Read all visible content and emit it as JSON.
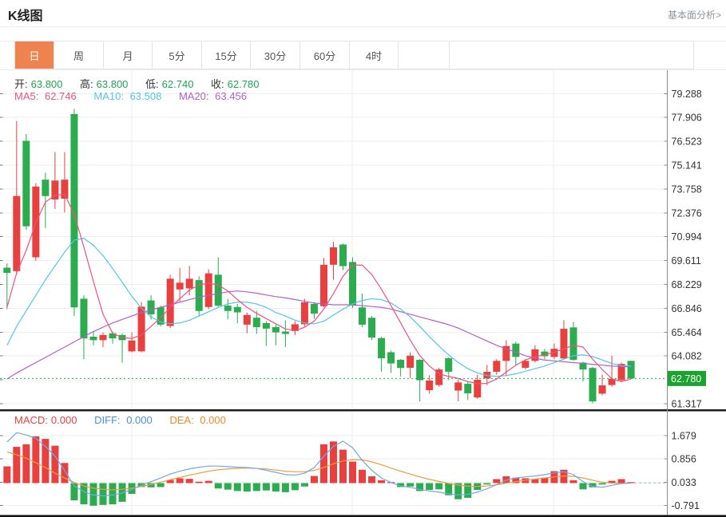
{
  "header": {
    "title": "K线图",
    "link": "基本面分析>"
  },
  "tabs": {
    "items": [
      "日",
      "周",
      "月",
      "5分",
      "15分",
      "30分",
      "60分",
      "4时"
    ],
    "selected": "日"
  },
  "legend": {
    "open_label": "开:",
    "open": "63.800",
    "high_label": "高:",
    "high": "63.800",
    "low_label": "低:",
    "low": "62.740",
    "close_label": "收:",
    "close": "62.780",
    "ma5_label": "MA5:",
    "ma5": "62.746",
    "ma10_label": "MA10:",
    "ma10": "63.508",
    "ma20_label": "MA20:",
    "ma20": "63.456"
  },
  "macd_legend": {
    "macd_label": "MACD:",
    "macd": "0.000",
    "diff_label": "DIFF:",
    "diff": "0.000",
    "dea_label": "DEA:",
    "dea": "0.000"
  },
  "colors": {
    "up": "#E83F3F",
    "down": "#2BAC4F",
    "value_green": "#1FA652",
    "ma5": "#F0527E",
    "ma10": "#53C6E8",
    "ma20": "#B25FD0",
    "diff_line": "#6FA8E8",
    "dea_line": "#F09A40",
    "diff_text": "#4A90D9",
    "dea_text": "#EF8B27",
    "macd_text": "#E64242",
    "tab_selected_bg": "#EF8350",
    "badge_bg": "#1AA32E",
    "current_price_line": "#2EAA4E",
    "axis": "#8A8A8A",
    "grid": "#EEEEEE",
    "tick_text": "#333333"
  },
  "chart_data": {
    "type": "candlestick",
    "panels": [
      "price",
      "macd"
    ],
    "legend_position": "top-left",
    "grid": true,
    "price_axis": {
      "labeled_ticks": [
        79.288,
        77.906,
        76.523,
        75.141,
        73.758,
        72.376,
        70.994,
        69.611,
        68.229,
        66.846,
        65.464,
        64.082,
        61.317
      ],
      "unlabeled_gridlines": [
        62.699
      ],
      "ylim": [
        61.0,
        79.9
      ],
      "current_price": 62.78,
      "current_price_label": "62.780"
    },
    "macd_axis": {
      "labeled_ticks": [
        1.679,
        0.856,
        0.033,
        -0.791
      ],
      "ylim": [
        -1.1,
        2.2
      ]
    },
    "candles_format": [
      "open",
      "high",
      "low",
      "close"
    ],
    "candles": [
      [
        69.2,
        69.45,
        66.8,
        68.9
      ],
      [
        69.0,
        77.7,
        68.8,
        73.35
      ],
      [
        76.55,
        76.95,
        71.4,
        71.6
      ],
      [
        69.8,
        74.1,
        69.6,
        73.9
      ],
      [
        74.3,
        74.7,
        71.5,
        73.35
      ],
      [
        73.15,
        75.9,
        72.6,
        74.25
      ],
      [
        73.2,
        75.9,
        72.4,
        74.3
      ],
      [
        78.1,
        78.4,
        66.4,
        66.9
      ],
      [
        67.4,
        67.6,
        63.9,
        65.1
      ],
      [
        65.2,
        65.5,
        64.7,
        65.0
      ],
      [
        65.0,
        65.45,
        64.6,
        65.3
      ],
      [
        65.4,
        65.5,
        64.8,
        65.1
      ],
      [
        65.3,
        65.4,
        63.7,
        65.0
      ],
      [
        64.35,
        65.45,
        64.3,
        64.98
      ],
      [
        64.35,
        67.2,
        64.3,
        66.94
      ],
      [
        67.3,
        67.6,
        66.2,
        66.5
      ],
      [
        66.9,
        67.0,
        65.8,
        65.9
      ],
      [
        65.82,
        68.8,
        65.7,
        68.56
      ],
      [
        67.94,
        69.2,
        67.2,
        68.33
      ],
      [
        68.0,
        69.3,
        67.6,
        68.56
      ],
      [
        68.48,
        68.7,
        66.4,
        66.69
      ],
      [
        66.92,
        69.1,
        66.8,
        68.87
      ],
      [
        68.79,
        69.8,
        66.9,
        67.0
      ],
      [
        67.0,
        67.4,
        66.2,
        66.69
      ],
      [
        66.92,
        67.1,
        65.98,
        66.61
      ],
      [
        65.9,
        66.6,
        65.4,
        66.46
      ],
      [
        66.3,
        66.7,
        65.36,
        65.75
      ],
      [
        65.99,
        66.1,
        64.66,
        65.67
      ],
      [
        65.76,
        65.9,
        64.7,
        65.45
      ],
      [
        65.5,
        66.15,
        64.6,
        65.36
      ],
      [
        65.53,
        66.1,
        65.3,
        65.92
      ],
      [
        65.92,
        67.4,
        65.8,
        67.19
      ],
      [
        67.1,
        67.2,
        66.23,
        66.54
      ],
      [
        66.97,
        69.76,
        66.9,
        69.37
      ],
      [
        69.37,
        70.7,
        68.5,
        70.38
      ],
      [
        70.54,
        70.6,
        69.05,
        69.29
      ],
      [
        69.53,
        69.8,
        66.86,
        67.0
      ],
      [
        66.9,
        67.7,
        65.75,
        65.9
      ],
      [
        66.3,
        66.4,
        65.0,
        65.15
      ],
      [
        65.12,
        65.2,
        63.17,
        63.95
      ],
      [
        64.3,
        64.4,
        63.1,
        63.65
      ],
      [
        63.86,
        63.9,
        62.9,
        63.39
      ],
      [
        63.4,
        64.3,
        62.8,
        64.1
      ],
      [
        63.86,
        63.9,
        61.45,
        62.68
      ],
      [
        62.1,
        62.97,
        61.9,
        62.66
      ],
      [
        62.4,
        63.4,
        62.3,
        63.3
      ],
      [
        63.95,
        64.0,
        62.7,
        63.17
      ],
      [
        62.08,
        62.7,
        61.45,
        62.55
      ],
      [
        62.47,
        62.6,
        61.53,
        61.92
      ],
      [
        61.68,
        63.0,
        61.6,
        62.7
      ],
      [
        62.78,
        63.56,
        62.39,
        63.17
      ],
      [
        63.17,
        63.9,
        63.0,
        63.8
      ],
      [
        63.8,
        65.0,
        62.94,
        64.66
      ],
      [
        64.8,
        64.9,
        63.56,
        64.03
      ],
      [
        63.4,
        63.9,
        63.3,
        63.8
      ],
      [
        63.8,
        64.7,
        63.7,
        64.47
      ],
      [
        64.34,
        64.5,
        63.9,
        64.07
      ],
      [
        64.03,
        64.8,
        63.9,
        64.5
      ],
      [
        63.94,
        66.16,
        63.9,
        65.66
      ],
      [
        65.74,
        66.07,
        63.8,
        63.86
      ],
      [
        63.7,
        63.75,
        62.6,
        63.3
      ],
      [
        63.39,
        63.45,
        61.35,
        61.45
      ],
      [
        61.9,
        63.0,
        61.8,
        62.38
      ],
      [
        62.4,
        64.1,
        62.3,
        62.76
      ],
      [
        62.68,
        63.7,
        62.6,
        63.62
      ],
      [
        63.8,
        63.8,
        62.74,
        62.78
      ]
    ],
    "series": {
      "ma5": [
        66.9,
        68.9,
        70.2,
        71.8,
        73.0,
        73.4,
        73.45,
        72.3,
        70.4,
        68.4,
        66.5,
        65.4,
        65.15,
        65.1,
        65.3,
        65.8,
        66.3,
        66.9,
        67.4,
        67.9,
        68.2,
        68.3,
        68.2,
        67.85,
        67.35,
        66.9,
        66.55,
        66.25,
        65.95,
        65.65,
        65.55,
        65.75,
        66.1,
        66.8,
        67.7,
        68.7,
        69.35,
        69.35,
        68.8,
        67.95,
        67.0,
        66.0,
        65.0,
        64.1,
        63.5,
        63.05,
        62.9,
        62.78,
        62.6,
        62.47,
        62.5,
        62.75,
        63.15,
        63.55,
        63.85,
        64.05,
        64.15,
        64.3,
        64.5,
        64.7,
        64.6,
        63.9,
        63.3,
        62.76,
        62.6,
        62.746
      ],
      "ma10": [
        64.7,
        65.8,
        66.7,
        67.6,
        68.5,
        69.3,
        70.1,
        70.8,
        70.9,
        70.5,
        69.9,
        69.15,
        68.35,
        67.55,
        66.85,
        66.35,
        66.05,
        65.95,
        66.0,
        66.15,
        66.4,
        66.65,
        66.9,
        67.1,
        67.2,
        67.2,
        67.1,
        66.9,
        66.6,
        66.4,
        66.15,
        66.0,
        65.95,
        66.1,
        66.45,
        66.8,
        67.1,
        67.3,
        67.4,
        67.35,
        67.15,
        66.8,
        66.35,
        65.8,
        65.2,
        64.65,
        64.15,
        63.7,
        63.35,
        63.1,
        62.95,
        62.9,
        62.95,
        63.05,
        63.2,
        63.35,
        63.5,
        63.7,
        63.9,
        64.1,
        64.15,
        64.05,
        63.85,
        63.65,
        63.52,
        63.508
      ],
      "ma20": [
        62.75,
        63.1,
        63.4,
        63.7,
        64.0,
        64.3,
        64.6,
        64.9,
        65.2,
        65.5,
        65.75,
        66.0,
        66.2,
        66.4,
        66.6,
        66.75,
        66.9,
        67.05,
        67.2,
        67.35,
        67.5,
        67.6,
        67.7,
        67.8,
        67.85,
        67.8,
        67.72,
        67.62,
        67.52,
        67.45,
        67.35,
        67.25,
        67.15,
        67.1,
        67.05,
        67.05,
        67.05,
        67.0,
        66.95,
        66.9,
        66.8,
        66.65,
        66.5,
        66.35,
        66.2,
        66.05,
        65.9,
        65.7,
        65.45,
        65.2,
        64.95,
        64.7,
        64.5,
        64.3,
        64.1,
        63.95,
        63.85,
        63.8,
        63.75,
        63.7,
        63.65,
        63.6,
        63.55,
        63.5,
        63.47,
        63.456
      ],
      "macd_hist": [
        0.59,
        1.28,
        1.37,
        1.65,
        1.56,
        1.32,
        0.71,
        -0.61,
        -0.75,
        -0.8,
        -0.77,
        -0.75,
        -0.66,
        -0.38,
        -0.14,
        -0.15,
        -0.14,
        0.11,
        0.17,
        0.15,
        0.05,
        0.08,
        -0.19,
        -0.23,
        -0.28,
        -0.3,
        -0.28,
        -0.26,
        -0.3,
        -0.32,
        -0.25,
        -0.12,
        0.25,
        1.37,
        1.47,
        1.18,
        0.76,
        0.47,
        0.24,
        0.1,
        0.02,
        -0.14,
        -0.12,
        -0.28,
        -0.24,
        -0.22,
        -0.43,
        -0.57,
        -0.52,
        -0.24,
        -0.05,
        0.14,
        0.24,
        0.19,
        0.17,
        0.14,
        0.19,
        0.42,
        0.47,
        0.1,
        -0.22,
        -0.15,
        -0.05,
        0.08,
        0.14,
        0.0
      ],
      "diff": [
        1.45,
        1.78,
        1.7,
        1.58,
        1.3,
        0.95,
        0.45,
        -0.1,
        -0.3,
        -0.42,
        -0.45,
        -0.42,
        -0.35,
        -0.22,
        -0.08,
        0.05,
        0.18,
        0.32,
        0.42,
        0.5,
        0.56,
        0.6,
        0.6,
        0.58,
        0.56,
        0.55,
        0.52,
        0.45,
        0.38,
        0.3,
        0.28,
        0.35,
        0.55,
        0.95,
        1.3,
        1.48,
        1.25,
        0.8,
        0.45,
        0.18,
        0.02,
        -0.1,
        -0.15,
        -0.22,
        -0.28,
        -0.32,
        -0.38,
        -0.42,
        -0.4,
        -0.32,
        -0.2,
        -0.05,
        0.1,
        0.18,
        0.22,
        0.25,
        0.3,
        0.36,
        0.4,
        0.3,
        0.05,
        -0.12,
        -0.15,
        -0.08,
        -0.02,
        0.0
      ],
      "dea": [
        1.1,
        1.0,
        0.88,
        0.72,
        0.55,
        0.35,
        0.18,
        0.02,
        -0.1,
        -0.18,
        -0.22,
        -0.24,
        -0.22,
        -0.18,
        -0.12,
        -0.05,
        0.03,
        0.12,
        0.2,
        0.28,
        0.35,
        0.42,
        0.47,
        0.5,
        0.52,
        0.53,
        0.52,
        0.5,
        0.46,
        0.42,
        0.4,
        0.4,
        0.45,
        0.55,
        0.68,
        0.78,
        0.83,
        0.82,
        0.75,
        0.65,
        0.53,
        0.42,
        0.32,
        0.22,
        0.13,
        0.06,
        -0.01,
        -0.07,
        -0.11,
        -0.12,
        -0.1,
        -0.06,
        0.0,
        0.05,
        0.1,
        0.14,
        0.18,
        0.22,
        0.25,
        0.24,
        0.18,
        0.1,
        0.03,
        0.0,
        -0.01,
        0.0
      ]
    }
  }
}
